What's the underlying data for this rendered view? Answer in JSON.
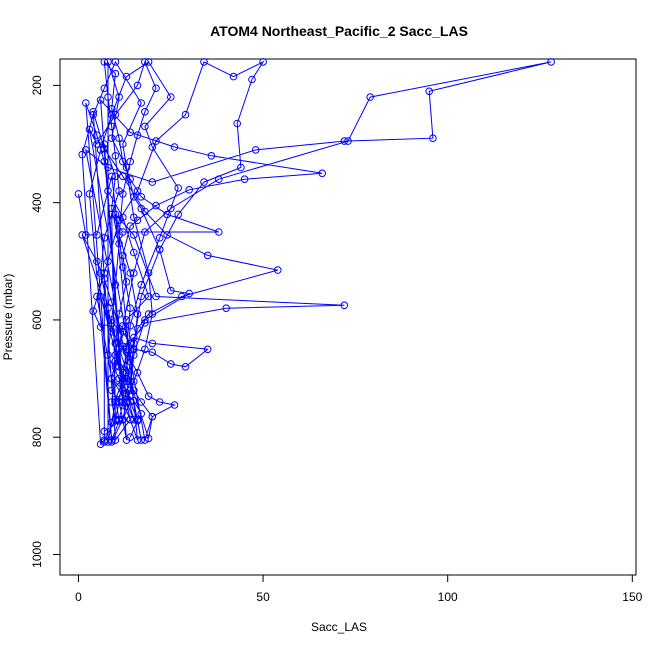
{
  "chart_data": {
    "type": "line",
    "title": "ATOM4 Northeast_Pacific_2 Sacc_LAS",
    "xlabel": "Sacc_LAS",
    "ylabel": "Pressure (mbar)",
    "xlim": [
      -5,
      151
    ],
    "ylim": [
      1035,
      155
    ],
    "y_reversed": true,
    "xticks": [
      0,
      50,
      100,
      150
    ],
    "yticks": [
      200,
      400,
      600,
      800,
      1000
    ],
    "grid": false,
    "line_color": "#0000ff",
    "marker": "open-circle",
    "series": [
      {
        "points": [
          [
            0,
            385
          ],
          [
            2,
            455
          ],
          [
            5,
            455
          ],
          [
            9,
            355
          ],
          [
            12,
            510
          ],
          [
            14,
            580
          ],
          [
            13,
            650
          ],
          [
            12,
            700
          ],
          [
            9,
            720
          ],
          [
            11,
            740
          ],
          [
            10,
            770
          ],
          [
            7,
            805
          ],
          [
            6,
            812
          ],
          [
            1,
            318
          ],
          [
            4,
            250
          ],
          [
            7,
            205
          ],
          [
            10,
            160
          ],
          [
            17,
            230
          ],
          [
            12,
            300
          ],
          [
            15,
            425
          ],
          [
            19,
            520
          ],
          [
            20,
            590
          ],
          [
            18,
            650
          ],
          [
            15,
            705
          ],
          [
            13,
            740
          ],
          [
            12,
            770
          ],
          [
            9,
            808
          ],
          [
            3,
            385
          ],
          [
            6,
            310
          ],
          [
            9,
            250
          ],
          [
            13,
            185
          ],
          [
            19,
            160
          ],
          [
            25,
            220
          ],
          [
            18,
            270
          ],
          [
            20,
            305
          ],
          [
            27,
            375
          ],
          [
            22,
            460
          ],
          [
            17,
            540
          ],
          [
            14,
            610
          ],
          [
            13,
            690
          ],
          [
            10,
            735
          ],
          [
            11,
            770
          ],
          [
            5,
            560
          ],
          [
            8,
            500
          ],
          [
            11,
            430
          ],
          [
            16,
            380
          ],
          [
            21,
            295
          ],
          [
            29,
            250
          ],
          [
            34,
            160
          ],
          [
            42,
            185
          ],
          [
            50,
            160
          ],
          [
            47,
            190
          ],
          [
            43,
            265
          ],
          [
            44,
            340
          ],
          [
            34,
            365
          ],
          [
            27,
            420
          ],
          [
            22,
            480
          ],
          [
            17,
            560
          ],
          [
            15,
            640
          ],
          [
            14,
            705
          ],
          [
            12,
            740
          ],
          [
            11,
            772
          ],
          [
            9,
            805
          ],
          [
            2,
            230
          ],
          [
            5,
            285
          ],
          [
            7,
            330
          ],
          [
            8,
            380
          ],
          [
            12,
            425
          ],
          [
            15,
            485
          ],
          [
            19,
            560
          ],
          [
            13,
            600
          ],
          [
            11,
            650
          ],
          [
            9,
            700
          ],
          [
            13,
            740
          ],
          [
            14,
            770
          ],
          [
            10,
            805
          ],
          [
            4,
            245
          ],
          [
            7,
            308
          ],
          [
            12,
            355
          ],
          [
            18,
            415
          ],
          [
            24,
            455
          ],
          [
            35,
            490
          ],
          [
            54,
            515
          ],
          [
            28,
            560
          ],
          [
            19,
            590
          ],
          [
            16,
            615
          ],
          [
            13,
            680
          ],
          [
            12,
            720
          ],
          [
            10,
            740
          ],
          [
            9,
            775
          ],
          [
            8,
            808
          ],
          [
            8,
            160
          ],
          [
            11,
            220
          ],
          [
            9,
            290
          ],
          [
            13,
            340
          ],
          [
            15,
            390
          ],
          [
            17,
            410
          ],
          [
            22,
            480
          ],
          [
            25,
            550
          ],
          [
            30,
            555
          ],
          [
            18,
            600
          ],
          [
            15,
            660
          ],
          [
            14,
            720
          ],
          [
            12,
            745
          ],
          [
            6,
            225
          ],
          [
            14,
            280
          ],
          [
            26,
            305
          ],
          [
            36,
            320
          ],
          [
            66,
            350
          ],
          [
            45,
            360
          ],
          [
            30,
            378
          ],
          [
            21,
            405
          ],
          [
            16,
            430
          ],
          [
            14,
            440
          ],
          [
            12,
            490
          ],
          [
            13,
            535
          ],
          [
            11,
            590
          ],
          [
            10,
            640
          ],
          [
            12,
            700
          ],
          [
            11,
            740
          ],
          [
            12,
            770
          ],
          [
            13,
            805
          ],
          [
            7,
            300
          ],
          [
            10,
            355
          ],
          [
            9,
            410
          ],
          [
            11,
            470
          ],
          [
            10,
            540
          ],
          [
            9,
            600
          ],
          [
            8,
            660
          ],
          [
            11,
            700
          ],
          [
            12,
            740
          ],
          [
            14,
            770
          ],
          [
            16,
            805
          ],
          [
            10,
            420
          ],
          [
            15,
            455
          ],
          [
            21,
            560
          ],
          [
            72,
            575
          ],
          [
            40,
            580
          ],
          [
            18,
            605
          ],
          [
            14,
            640
          ],
          [
            12,
            690
          ],
          [
            13,
            740
          ],
          [
            15,
            770
          ],
          [
            6,
            560
          ],
          [
            9,
            620
          ],
          [
            13,
            655
          ],
          [
            16,
            690
          ],
          [
            19,
            730
          ],
          [
            22,
            740
          ],
          [
            26,
            745
          ],
          [
            20,
            765
          ],
          [
            18,
            805
          ],
          [
            3,
            275
          ],
          [
            5,
            300
          ],
          [
            10,
            250
          ],
          [
            16,
            200
          ],
          [
            18,
            160
          ],
          [
            21,
            205
          ],
          [
            18,
            245
          ],
          [
            16,
            285
          ],
          [
            14,
            330
          ],
          [
            12,
            385
          ],
          [
            11,
            455
          ],
          [
            14,
            520
          ],
          [
            16,
            590
          ],
          [
            15,
            650
          ],
          [
            13,
            705
          ],
          [
            14,
            740
          ],
          [
            16,
            770
          ],
          [
            17,
            805
          ],
          [
            2,
            310
          ],
          [
            8,
            340
          ],
          [
            20,
            365
          ],
          [
            48,
            310
          ],
          [
            72,
            295
          ],
          [
            96,
            290
          ],
          [
            95,
            210
          ],
          [
            128,
            160
          ],
          [
            79,
            220
          ],
          [
            73,
            295
          ],
          [
            38,
            360
          ],
          [
            25,
            410
          ],
          [
            18,
            450
          ],
          [
            15,
            520
          ],
          [
            12,
            610
          ],
          [
            10,
            680
          ],
          [
            9,
            740
          ],
          [
            10,
            770
          ],
          [
            9,
            420
          ],
          [
            12,
            450
          ],
          [
            38,
            450
          ],
          [
            24,
            420
          ],
          [
            17,
            390
          ],
          [
            14,
            360
          ],
          [
            12,
            330
          ],
          [
            11,
            290
          ],
          [
            9,
            240
          ],
          [
            10,
            180
          ],
          [
            7,
            160
          ],
          [
            8,
            220
          ],
          [
            9,
            270
          ],
          [
            10,
            320
          ],
          [
            11,
            380
          ],
          [
            7,
            460
          ],
          [
            6,
            520
          ],
          [
            8,
            580
          ],
          [
            10,
            640
          ],
          [
            11,
            680
          ],
          [
            13,
            700
          ],
          [
            15,
            720
          ],
          [
            17,
            740
          ],
          [
            20,
            765
          ],
          [
            19,
            802
          ],
          [
            1,
            455
          ],
          [
            5,
            500
          ],
          [
            7,
            530
          ],
          [
            9,
            570
          ],
          [
            11,
            615
          ],
          [
            10,
            660
          ],
          [
            12,
            705
          ],
          [
            14,
            740
          ],
          [
            12,
            770
          ],
          [
            7,
            790
          ],
          [
            7,
            808
          ],
          [
            7,
            520
          ],
          [
            4,
            585
          ],
          [
            6,
            612
          ],
          [
            9,
            605
          ],
          [
            12,
            620
          ],
          [
            15,
            650
          ],
          [
            20,
            655
          ],
          [
            25,
            675
          ],
          [
            29,
            680
          ],
          [
            35,
            650
          ],
          [
            20,
            640
          ],
          [
            15,
            630
          ],
          [
            12,
            645
          ],
          [
            10,
            670
          ],
          [
            9,
            700
          ],
          [
            13,
            725
          ],
          [
            15,
            738
          ],
          [
            17,
            760
          ],
          [
            16,
            772
          ],
          [
            14,
            800
          ]
        ]
      }
    ]
  }
}
